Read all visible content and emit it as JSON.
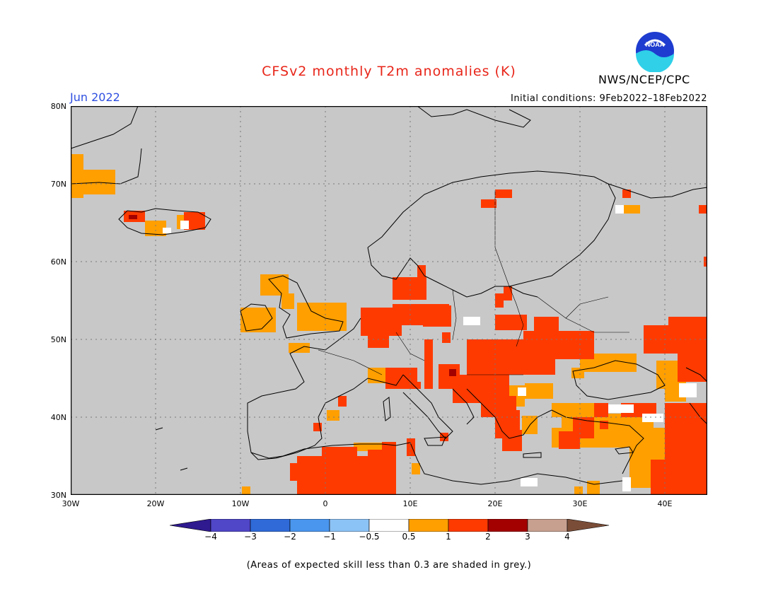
{
  "title": "CFSv2 monthly T2m anomalies (K)",
  "organization": "NWS/NCEP/CPC",
  "logo_text": "NOAA",
  "month_label": "Jun 2022",
  "initial_conditions": "Initial conditions: 9Feb2022–18Feb2022",
  "footnote": "(Areas of expected skill less than 0.3 are shaded in grey.)",
  "map": {
    "lon_range": [
      -30,
      45
    ],
    "lat_range": [
      30,
      80
    ],
    "background_color": "#c8c8c8",
    "lat_ticks": [
      "80N",
      "70N",
      "60N",
      "50N",
      "40N",
      "30N"
    ],
    "lon_ticks": [
      "30W",
      "20W",
      "10W",
      "0",
      "10E",
      "20E",
      "30E",
      "40E"
    ],
    "gridlines": "dotted"
  },
  "colorbar": {
    "labels": [
      "−4",
      "−3",
      "−2",
      "−1",
      "−0.5",
      "0.5",
      "1",
      "2",
      "3",
      "4"
    ],
    "colors": [
      "#2f1a8f",
      "#5046c8",
      "#2f6ad8",
      "#4a96ee",
      "#8cc3f6",
      "#ffffff",
      "#ff9f00",
      "#ff3a00",
      "#a30000",
      "#c8a090",
      "#7a4d38"
    ]
  },
  "colors": {
    "title": "#e8261a",
    "month_label": "#2f4fe0",
    "anomaly_0_5_to_1": "#ff9f00",
    "anomaly_1_to_2": "#ff3a00",
    "anomaly_2_to_3": "#a30000",
    "low_anomaly_white": "#ffffff"
  }
}
